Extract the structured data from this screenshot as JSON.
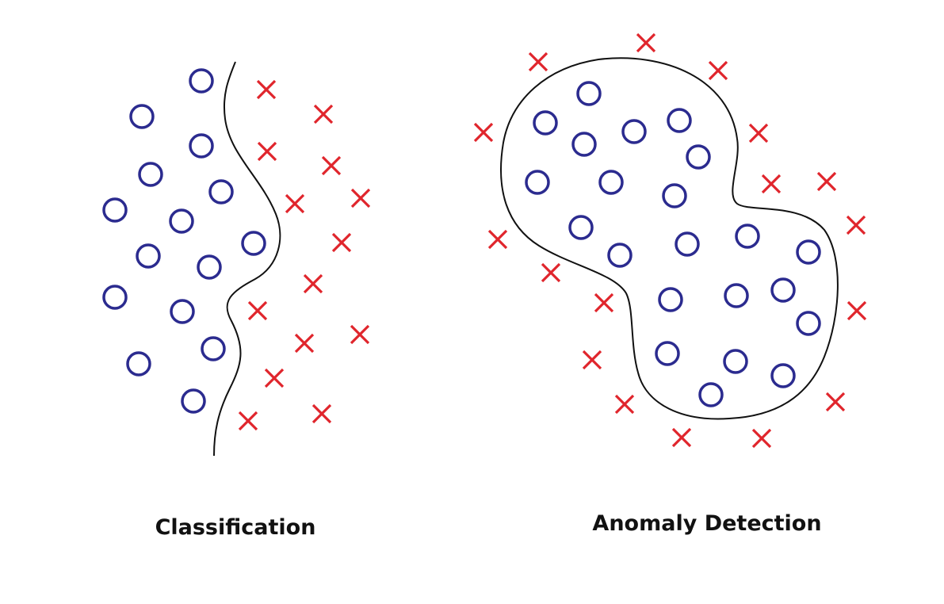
{
  "colors": {
    "normal_marker": "#2b2b8f",
    "anomaly_marker": "#e0252c",
    "boundary": "#111111",
    "label_text": "#111111"
  },
  "legend_semantics": {
    "circle": "normal data point",
    "cross": "outlier / other class"
  },
  "panels": [
    {
      "id": "classification",
      "label": "Classification",
      "boundary_shape": "open-curve"
    },
    {
      "id": "anomaly",
      "label": "Anomaly Detection",
      "boundary_shape": "closed-curve"
    }
  ]
}
